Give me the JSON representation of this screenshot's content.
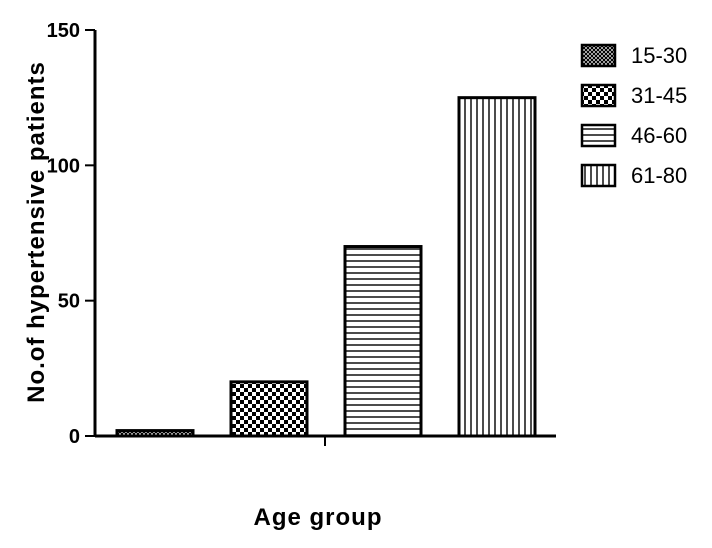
{
  "chart_data": {
    "type": "bar",
    "title": "",
    "xlabel": "Age group",
    "ylabel": "No.of hypertensive patients",
    "ylim": [
      0,
      150
    ],
    "yticks": [
      0,
      50,
      100,
      150
    ],
    "grid": false,
    "legend_position": "top-right",
    "series": [
      {
        "name": "15-30",
        "value": 2,
        "pattern": "fine-crosshatch"
      },
      {
        "name": "31-45",
        "value": 20,
        "pattern": "checkerboard"
      },
      {
        "name": "46-60",
        "value": 70,
        "pattern": "horizontal-lines"
      },
      {
        "name": "61-80",
        "value": 125,
        "pattern": "vertical-lines"
      }
    ]
  }
}
